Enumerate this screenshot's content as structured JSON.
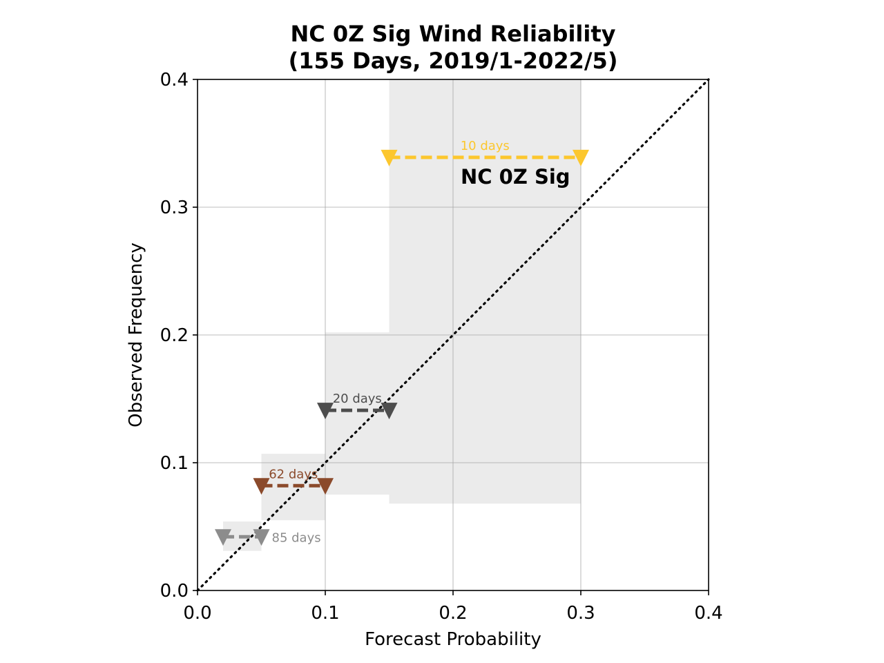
{
  "chart_data": {
    "type": "scatter",
    "title": [
      "NC 0Z Sig Wind Reliability",
      "(155 Days, 2019/1-2022/5)"
    ],
    "xlabel": "Forecast Probability",
    "ylabel": "Observed Frequency",
    "xlim": [
      0.0,
      0.4
    ],
    "ylim": [
      0.0,
      0.4
    ],
    "xticks": [
      "0.0",
      "0.1",
      "0.2",
      "0.3",
      "0.4"
    ],
    "yticks": [
      "0.0",
      "0.1",
      "0.2",
      "0.3",
      "0.4"
    ],
    "grid": true,
    "reference_line": "y = x (dotted)",
    "annotation": "NC 0Z Sig",
    "bins": [
      {
        "label": "85 days",
        "color": "#8c8c8c",
        "x_start": 0.02,
        "x_end": 0.05,
        "observed": 0.042,
        "ci_low": 0.031,
        "ci_high": 0.054
      },
      {
        "label": "62 days",
        "color": "#8b4a2b",
        "x_start": 0.05,
        "x_end": 0.1,
        "observed": 0.082,
        "ci_low": 0.055,
        "ci_high": 0.107
      },
      {
        "label": "20 days",
        "color": "#4d4d4d",
        "x_start": 0.1,
        "x_end": 0.15,
        "observed": 0.141,
        "ci_low": 0.075,
        "ci_high": 0.202
      },
      {
        "label": "10 days",
        "color": "#fcc72e",
        "x_start": 0.15,
        "x_end": 0.3,
        "observed": 0.339,
        "ci_low": 0.068,
        "ci_high": 0.4
      }
    ]
  }
}
